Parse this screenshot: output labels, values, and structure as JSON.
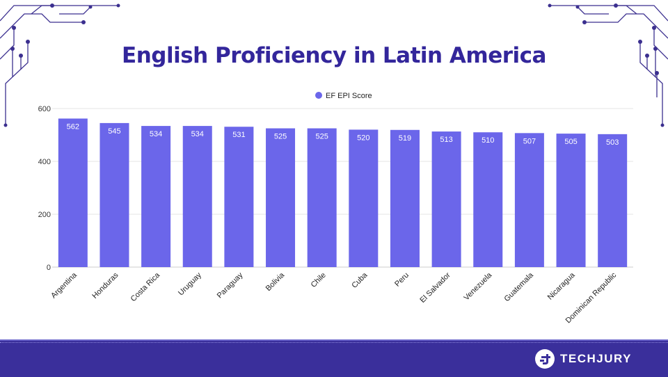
{
  "chart_data": {
    "type": "bar",
    "title": "English Proficiency in Latin America",
    "legend": {
      "label": "EF EPI Score",
      "position": "top-center"
    },
    "categories": [
      "Argentina",
      "Honduras",
      "Costa Rica",
      "Uruguay",
      "Paraguay",
      "Bolivia",
      "Chile",
      "Cuba",
      "Peru",
      "El Salvador",
      "Venezuela",
      "Guatemala",
      "Nicaragua",
      "Dominican Republic"
    ],
    "series": [
      {
        "name": "EF EPI Score",
        "values": [
          562,
          545,
          534,
          534,
          531,
          525,
          525,
          520,
          519,
          513,
          510,
          507,
          505,
          503
        ]
      }
    ],
    "ylim": [
      0,
      600
    ],
    "yticks": [
      0,
      200,
      400,
      600
    ],
    "xlabel": "",
    "ylabel": "",
    "grid": true,
    "bar_color": "#6b66ea",
    "label_color": "#ffffff"
  },
  "brand": {
    "name": "TECHJURY"
  },
  "colors": {
    "title": "#33269b",
    "footer": "#3a2f9b",
    "circuit": "#3b2f8f"
  }
}
